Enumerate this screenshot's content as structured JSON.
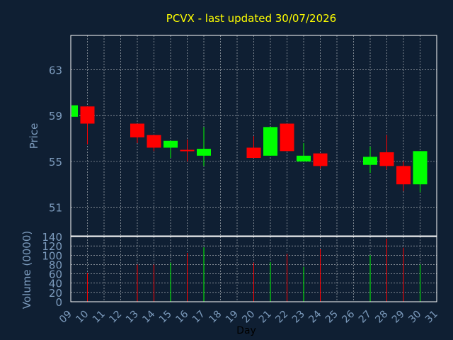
{
  "chart_data": {
    "type": "candlestick",
    "title": "PCVX - last updated 30/07/2026",
    "xlabel": "Day",
    "price_panel": {
      "ylabel": "Price",
      "ylim": [
        48.5,
        66
      ],
      "yticks": [
        51,
        55,
        59,
        63
      ],
      "grid": true
    },
    "volume_panel": {
      "ylabel": "Volume (0000)",
      "ylim": [
        0,
        140
      ],
      "yticks": [
        0,
        20,
        40,
        60,
        80,
        100,
        120,
        140
      ]
    },
    "x_ticks": [
      "09",
      "10",
      "11",
      "12",
      "13",
      "14",
      "15",
      "16",
      "17",
      "18",
      "19",
      "20",
      "21",
      "22",
      "23",
      "24",
      "25",
      "26",
      "27",
      "28",
      "29",
      "30",
      "31"
    ],
    "colors": {
      "up": "#00ff00",
      "down": "#ff0000",
      "background": "#0f1f33"
    },
    "candles": [
      {
        "day": 9,
        "open": 58.9,
        "high": 59.9,
        "low": 58.9,
        "close": 59.9,
        "volume": 0
      },
      {
        "day": 10,
        "open": 59.8,
        "high": 59.8,
        "low": 56.5,
        "close": 58.3,
        "volume": 62
      },
      {
        "day": 13,
        "open": 58.3,
        "high": 58.3,
        "low": 56.6,
        "close": 57.1,
        "volume": 80
      },
      {
        "day": 14,
        "open": 57.3,
        "high": 57.3,
        "low": 55.9,
        "close": 56.2,
        "volume": 80
      },
      {
        "day": 15,
        "open": 56.2,
        "high": 56.8,
        "low": 55.3,
        "close": 56.8,
        "volume": 84
      },
      {
        "day": 16,
        "open": 56.0,
        "high": 56.9,
        "low": 55.0,
        "close": 55.9,
        "volume": 105
      },
      {
        "day": 17,
        "open": 55.5,
        "high": 58.0,
        "low": 54.6,
        "close": 56.1,
        "volume": 117
      },
      {
        "day": 20,
        "open": 56.2,
        "high": 57.2,
        "low": 55.3,
        "close": 55.3,
        "volume": 84
      },
      {
        "day": 21,
        "open": 55.5,
        "high": 58.0,
        "low": 55.5,
        "close": 58.0,
        "volume": 85
      },
      {
        "day": 22,
        "open": 58.3,
        "high": 58.3,
        "low": 55.9,
        "close": 55.9,
        "volume": 103
      },
      {
        "day": 23,
        "open": 55.0,
        "high": 56.6,
        "low": 55.0,
        "close": 55.5,
        "volume": 75
      },
      {
        "day": 24,
        "open": 55.7,
        "high": 55.7,
        "low": 54.4,
        "close": 54.6,
        "volume": 113
      },
      {
        "day": 27,
        "open": 54.7,
        "high": 56.3,
        "low": 54.0,
        "close": 55.4,
        "volume": 100
      },
      {
        "day": 28,
        "open": 55.8,
        "high": 57.3,
        "low": 54.3,
        "close": 54.6,
        "volume": 135
      },
      {
        "day": 29,
        "open": 54.6,
        "high": 55.0,
        "low": 52.4,
        "close": 53.0,
        "volume": 116
      },
      {
        "day": 30,
        "open": 53.0,
        "high": 55.9,
        "low": 52.3,
        "close": 55.9,
        "volume": 80
      }
    ]
  }
}
